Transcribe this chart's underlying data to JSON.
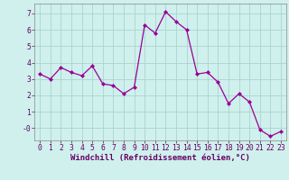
{
  "x": [
    0,
    1,
    2,
    3,
    4,
    5,
    6,
    7,
    8,
    9,
    10,
    11,
    12,
    13,
    14,
    15,
    16,
    17,
    18,
    19,
    20,
    21,
    22,
    23
  ],
  "y": [
    3.3,
    3.0,
    3.7,
    3.4,
    3.2,
    3.8,
    2.7,
    2.6,
    2.1,
    2.5,
    6.3,
    5.8,
    7.1,
    6.5,
    6.0,
    3.3,
    3.4,
    2.8,
    1.5,
    2.1,
    1.6,
    -0.1,
    -0.5,
    -0.2
  ],
  "line_color": "#990099",
  "marker": "D",
  "marker_size": 2.0,
  "bg_color": "#cff0ec",
  "grid_color": "#aad4d0",
  "xlabel": "Windchill (Refroidissement éolien,°C)",
  "xlabel_fontsize": 6.5,
  "yticks": [
    0,
    1,
    2,
    3,
    4,
    5,
    6,
    7
  ],
  "ytick_labels": [
    "-0",
    "1",
    "2",
    "3",
    "4",
    "5",
    "6",
    "7"
  ],
  "xticks": [
    0,
    1,
    2,
    3,
    4,
    5,
    6,
    7,
    8,
    9,
    10,
    11,
    12,
    13,
    14,
    15,
    16,
    17,
    18,
    19,
    20,
    21,
    22,
    23
  ],
  "ylim": [
    -0.75,
    7.6
  ],
  "xlim": [
    -0.5,
    23.5
  ],
  "tick_fontsize": 5.8,
  "label_color": "#660066",
  "spine_color": "#888888"
}
